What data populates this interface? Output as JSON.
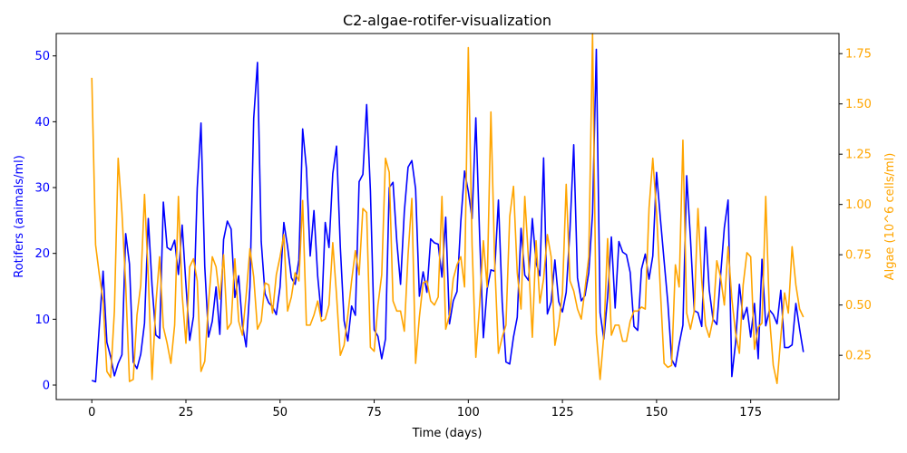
{
  "colors": {
    "rotifers": "#0000ff",
    "algae": "#ffa500",
    "axis": "#000000",
    "background": "#ffffff"
  },
  "chart_data": {
    "type": "line",
    "title": "C2-algae-rotifer-visualization",
    "xlabel": "Time (days)",
    "ylabel_left": "Rotifers (animals/ml)",
    "ylabel_right": "Algae (10^6 cells/ml)",
    "xlim": [
      -9.45,
      198.45
    ],
    "ylim_left": [
      -2.2,
      53.4
    ],
    "ylim_right": [
      0.03,
      1.85
    ],
    "x_ticks": [
      0,
      25,
      50,
      75,
      100,
      125,
      150,
      175
    ],
    "y_ticks_left": [
      0,
      10,
      20,
      30,
      40,
      50
    ],
    "y_ticks_right": [
      0.25,
      0.5,
      0.75,
      1.0,
      1.25,
      1.5,
      1.75
    ],
    "grid": false,
    "legend": "none",
    "x": [
      0,
      1,
      2,
      3,
      4,
      5,
      6,
      7,
      8,
      9,
      10,
      11,
      12,
      13,
      14,
      15,
      16,
      17,
      18,
      19,
      20,
      21,
      22,
      23,
      24,
      25,
      26,
      27,
      28,
      29,
      30,
      31,
      32,
      33,
      34,
      35,
      36,
      37,
      38,
      39,
      40,
      41,
      42,
      43,
      44,
      45,
      46,
      47,
      48,
      49,
      50,
      51,
      52,
      53,
      54,
      55,
      56,
      57,
      58,
      59,
      60,
      61,
      62,
      63,
      64,
      65,
      66,
      67,
      68,
      69,
      70,
      71,
      72,
      73,
      74,
      75,
      76,
      77,
      78,
      79,
      80,
      81,
      82,
      83,
      84,
      85,
      86,
      87,
      88,
      89,
      90,
      91,
      92,
      93,
      94,
      95,
      96,
      97,
      98,
      99,
      100,
      101,
      102,
      103,
      104,
      105,
      106,
      107,
      108,
      109,
      110,
      111,
      112,
      113,
      114,
      115,
      116,
      117,
      118,
      119,
      120,
      121,
      122,
      123,
      124,
      125,
      126,
      127,
      128,
      129,
      130,
      131,
      132,
      133,
      134,
      135,
      136,
      137,
      138,
      139,
      140,
      141,
      142,
      143,
      144,
      145,
      146,
      147,
      148,
      149,
      150,
      151,
      152,
      153,
      154,
      155,
      156,
      157,
      158,
      159,
      160,
      161,
      162,
      163,
      164,
      165,
      166,
      167,
      168,
      169,
      170,
      171,
      172,
      173,
      174,
      175,
      176,
      177,
      178,
      179,
      180,
      181,
      182,
      183,
      184,
      185,
      186,
      187,
      188,
      189
    ],
    "series": [
      {
        "name": "Rotifers (animals/ml)",
        "axis": "left",
        "color": "#0000ff",
        "values": [
          0.7,
          0.5,
          9.0,
          17.3,
          6.5,
          4.3,
          1.4,
          3.3,
          4.6,
          23.0,
          18.4,
          3.5,
          2.5,
          4.7,
          9.4,
          25.3,
          15.1,
          7.6,
          7.1,
          27.8,
          20.9,
          20.5,
          22.0,
          16.8,
          24.3,
          15.3,
          6.8,
          10.4,
          29.9,
          39.8,
          18.0,
          7.3,
          9.7,
          14.9,
          7.7,
          22.1,
          24.9,
          23.7,
          13.3,
          16.6,
          9.1,
          5.8,
          14.9,
          40.5,
          49.0,
          21.8,
          13.9,
          12.5,
          11.9,
          10.7,
          14.9,
          24.7,
          21.0,
          16.3,
          15.3,
          19.0,
          38.9,
          32.9,
          19.6,
          26.5,
          16.5,
          10.4,
          24.7,
          20.9,
          32.1,
          36.3,
          21.0,
          9.8,
          6.7,
          12.0,
          10.6,
          30.9,
          32.0,
          42.6,
          29.5,
          8.4,
          7.4,
          4.0,
          7.0,
          30.0,
          30.8,
          21.9,
          15.3,
          26.3,
          33.1,
          34.1,
          29.8,
          13.5,
          17.2,
          14.1,
          22.2,
          21.6,
          21.4,
          16.4,
          25.5,
          9.3,
          12.8,
          14.2,
          24.8,
          32.5,
          29.4,
          25.3,
          40.6,
          22.8,
          7.2,
          14.6,
          17.5,
          17.3,
          28.1,
          12.6,
          3.5,
          3.2,
          7.3,
          10.3,
          23.8,
          16.7,
          15.9,
          25.3,
          18.6,
          16.6,
          34.5,
          10.8,
          12.6,
          19.0,
          12.7,
          11.1,
          14.1,
          23.6,
          36.5,
          16.3,
          12.8,
          13.6,
          17.1,
          26.1,
          51.0,
          11.0,
          7.0,
          13.4,
          22.5,
          11.7,
          21.8,
          20.2,
          19.8,
          17.1,
          8.9,
          8.3,
          17.6,
          19.9,
          16.1,
          19.6,
          32.3,
          25.4,
          18.9,
          12.5,
          3.9,
          2.8,
          6.2,
          9.1,
          31.8,
          22.3,
          11.3,
          11.0,
          8.9,
          24.0,
          14.4,
          10.0,
          9.2,
          16.6,
          23.9,
          28.1,
          1.3,
          6.5,
          15.3,
          10.0,
          11.8,
          7.3,
          12.4,
          4.0,
          19.1,
          9.0,
          11.4,
          10.7,
          9.3,
          14.4,
          5.7,
          5.7,
          6.1,
          12.4,
          8.5,
          5.0
        ]
      },
      {
        "name": "Algae (10^6 cells/ml)",
        "axis": "right",
        "color": "#ffa500",
        "values": [
          1.63,
          0.8,
          0.65,
          0.52,
          0.17,
          0.14,
          0.47,
          1.23,
          0.96,
          0.6,
          0.12,
          0.13,
          0.45,
          0.6,
          1.05,
          0.64,
          0.13,
          0.5,
          0.74,
          0.39,
          0.31,
          0.21,
          0.4,
          1.04,
          0.55,
          0.31,
          0.69,
          0.73,
          0.62,
          0.17,
          0.22,
          0.51,
          0.74,
          0.69,
          0.53,
          0.75,
          0.38,
          0.41,
          0.73,
          0.42,
          0.35,
          0.55,
          0.78,
          0.64,
          0.38,
          0.42,
          0.61,
          0.6,
          0.46,
          0.65,
          0.74,
          0.85,
          0.47,
          0.54,
          0.66,
          0.62,
          1.02,
          0.4,
          0.4,
          0.45,
          0.52,
          0.42,
          0.43,
          0.5,
          0.81,
          0.55,
          0.25,
          0.3,
          0.45,
          0.62,
          0.77,
          0.65,
          0.98,
          0.96,
          0.29,
          0.27,
          0.5,
          0.65,
          1.23,
          1.16,
          0.52,
          0.47,
          0.47,
          0.37,
          0.75,
          1.03,
          0.21,
          0.44,
          0.61,
          0.62,
          0.52,
          0.5,
          0.54,
          1.04,
          0.38,
          0.45,
          0.63,
          0.7,
          0.74,
          0.59,
          1.78,
          0.8,
          0.24,
          0.5,
          0.82,
          0.59,
          1.46,
          0.72,
          0.26,
          0.34,
          0.4,
          0.94,
          1.09,
          0.66,
          0.48,
          1.04,
          0.72,
          0.34,
          0.82,
          0.51,
          0.63,
          0.85,
          0.74,
          0.3,
          0.4,
          0.56,
          1.1,
          0.62,
          0.57,
          0.48,
          0.43,
          0.58,
          0.74,
          1.85,
          0.36,
          0.13,
          0.35,
          0.83,
          0.35,
          0.4,
          0.4,
          0.32,
          0.32,
          0.42,
          0.47,
          0.47,
          0.49,
          0.48,
          0.98,
          1.23,
          0.96,
          0.58,
          0.21,
          0.19,
          0.2,
          0.7,
          0.59,
          1.32,
          0.46,
          0.38,
          0.47,
          0.98,
          0.62,
          0.4,
          0.34,
          0.43,
          0.72,
          0.64,
          0.5,
          0.79,
          0.53,
          0.36,
          0.26,
          0.6,
          0.76,
          0.74,
          0.28,
          0.39,
          0.41,
          1.04,
          0.44,
          0.2,
          0.11,
          0.34,
          0.56,
          0.46,
          0.79,
          0.6,
          0.48,
          0.44
        ]
      }
    ]
  }
}
